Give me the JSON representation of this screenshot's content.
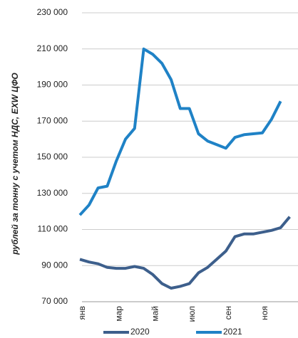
{
  "chart_data": {
    "type": "line",
    "y_label": "рублей за тонну с учетом НДС, EXW ЦФО",
    "categories": [
      "янв",
      null,
      null,
      null,
      "мар",
      null,
      null,
      null,
      "май",
      null,
      null,
      null,
      "июл",
      null,
      null,
      null,
      "сен",
      null,
      null,
      null,
      "ноя",
      null,
      null,
      null
    ],
    "series": [
      {
        "name": "2020",
        "color": "#3d5f8c",
        "values": [
          93500,
          92000,
          91000,
          89000,
          88500,
          88500,
          89500,
          88500,
          85000,
          80000,
          77500,
          78500,
          80000,
          86000,
          89000,
          93500,
          98000,
          106000,
          107500,
          107500,
          108500,
          109500,
          111000,
          117000
        ]
      },
      {
        "name": "2021",
        "color": "#1f82c6",
        "values": [
          118000,
          123500,
          133000,
          134000,
          148000,
          160000,
          166000,
          210000,
          207000,
          202000,
          193000,
          177000,
          177000,
          163000,
          159000,
          157000,
          155000,
          161000,
          162500,
          163000,
          163500,
          171000,
          181000,
          null
        ]
      }
    ],
    "ylim": [
      70000,
      230000
    ],
    "yticks": [
      {
        "value": 70000,
        "label": "70 000"
      },
      {
        "value": 90000,
        "label": "90 000"
      },
      {
        "value": 110000,
        "label": "110 000"
      },
      {
        "value": 130000,
        "label": "130 000"
      },
      {
        "value": 150000,
        "label": "150 000"
      },
      {
        "value": 170000,
        "label": "170 000"
      },
      {
        "value": 190000,
        "label": "190 000"
      },
      {
        "value": 210000,
        "label": "210 000"
      },
      {
        "value": 230000,
        "label": "230 000"
      }
    ],
    "grid": true,
    "legend": "bottom"
  }
}
